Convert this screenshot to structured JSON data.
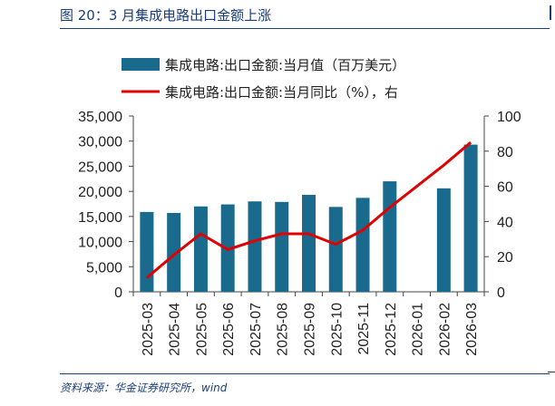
{
  "title": "图 20：3 月集成电路出口金额上涨",
  "source": "资料来源：华金证券研究所，wind",
  "chart_data": {
    "type": "bar+line",
    "categories": [
      "2025-03",
      "2025-04",
      "2025-05",
      "2025-06",
      "2025-07",
      "2025-08",
      "2025-09",
      "2025-10",
      "2025-11",
      "2025-12",
      "2026-01",
      "2026-02",
      "2026-03"
    ],
    "series": [
      {
        "name": "集成电路:出口金额:当月值（百万美元）",
        "type": "bar",
        "axis": "left",
        "color": "#1a6a8e",
        "values": [
          15900,
          15700,
          17000,
          17400,
          18000,
          17900,
          19300,
          16900,
          18700,
          22000,
          null,
          20600,
          29300
        ]
      },
      {
        "name": "集成电路:出口金额:当月同比（%），右",
        "type": "line",
        "axis": "right",
        "color": "#e00000",
        "values": [
          8,
          21,
          33,
          24,
          29,
          33,
          33,
          27,
          35,
          48,
          null,
          72,
          85
        ]
      }
    ],
    "y_left": {
      "min": 0,
      "max": 35000,
      "ticks": [
        "0",
        "5,000",
        "10,000",
        "15,000",
        "20,000",
        "25,000",
        "30,000",
        "35,000"
      ]
    },
    "y_right": {
      "min": 0,
      "max": 100,
      "ticks": [
        "0",
        "20",
        "40",
        "60",
        "80",
        "100"
      ]
    },
    "legend_position": "top",
    "grid": false
  }
}
